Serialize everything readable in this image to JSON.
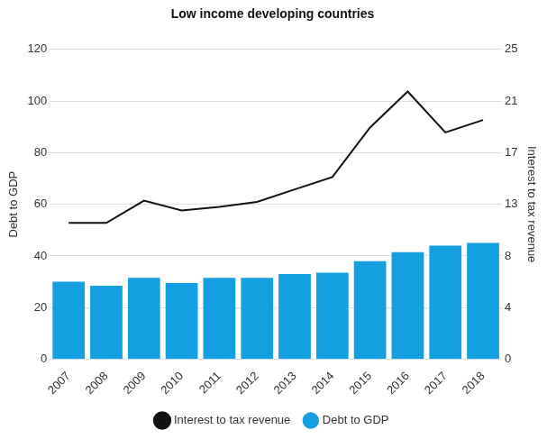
{
  "chart_data": {
    "type": "bar",
    "title": "Low income developing countries",
    "categories": [
      "2007",
      "2008",
      "2009",
      "2010",
      "2011",
      "2012",
      "2013",
      "2014",
      "2015",
      "2016",
      "2017",
      "2018"
    ],
    "series": [
      {
        "name": "Debt to GDP",
        "type": "bar",
        "color": "#139fe0",
        "axis": "y",
        "values": [
          30,
          28.5,
          31.5,
          29.5,
          31.5,
          31.5,
          33,
          33.5,
          38,
          41.5,
          44,
          45
        ]
      },
      {
        "name": "Interest to tax revenue",
        "type": "line",
        "color": "#111111",
        "axis": "y2",
        "values": [
          11,
          11,
          12.8,
          12,
          12.3,
          12.7,
          13.7,
          14.7,
          18.7,
          21.6,
          18.3,
          19.3
        ]
      }
    ],
    "y_label": "Debt to GDP",
    "y2_label": "Interest to tax revenue",
    "ylim": [
      0,
      120
    ],
    "yticks": [
      0,
      20,
      40,
      60,
      80,
      100,
      120
    ],
    "y2lim": [
      0,
      25
    ],
    "y2ticks": [
      0,
      {
        "value": 4.17,
        "label": "4"
      },
      {
        "value": 8.33,
        "label": "8"
      },
      {
        "value": 12.5,
        "label": "13"
      },
      {
        "value": 16.67,
        "label": "17"
      },
      {
        "value": 20.83,
        "label": "21"
      },
      25
    ],
    "grid": true,
    "legend": "bottom"
  }
}
